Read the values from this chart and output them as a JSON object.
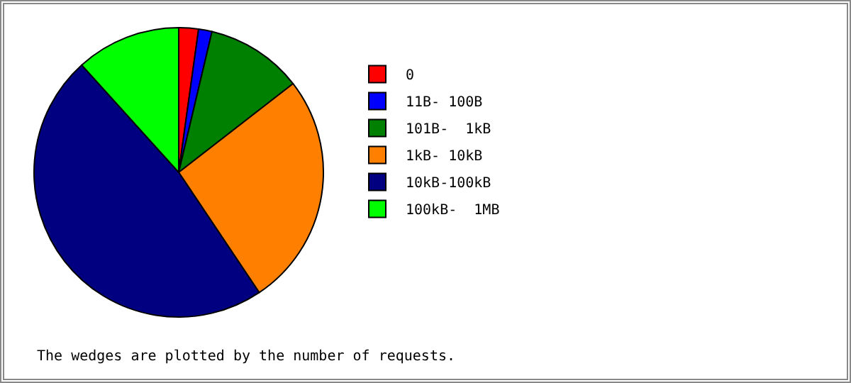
{
  "chart_data": {
    "type": "pie",
    "categories": [
      "0",
      "11B- 100B",
      "101B-  1kB",
      "1kB- 10kB",
      "10kB-100kB",
      "100kB-  1MB"
    ],
    "values": [
      2.2,
      1.5,
      10.8,
      26.1,
      47.7,
      11.7
    ],
    "colors": [
      "#ff0000",
      "#0000ff",
      "#008000",
      "#ff8000",
      "#000080",
      "#00ff00"
    ],
    "legend": "right",
    "annotations": [
      "The wedges are plotted by the number of requests."
    ]
  }
}
